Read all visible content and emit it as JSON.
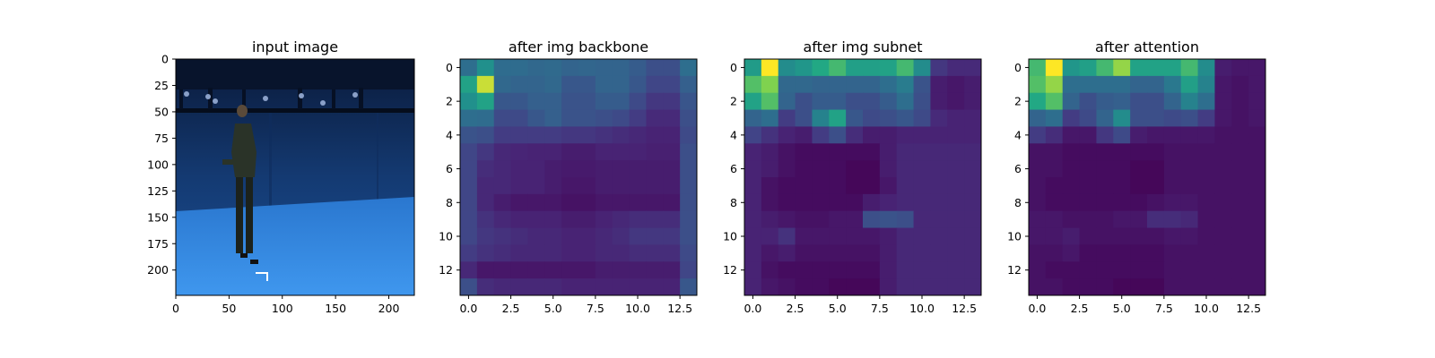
{
  "chart_data": [
    {
      "type": "image",
      "title": "input image",
      "xlim": [
        0,
        224
      ],
      "ylim": [
        224,
        0
      ],
      "xticks": [
        0,
        50,
        100,
        150,
        200
      ],
      "yticks": [
        0,
        25,
        50,
        75,
        100,
        125,
        150,
        175,
        200
      ],
      "content": "motion-capture studio with blue backdrop, a person standing on a blue floor"
    },
    {
      "type": "heatmap",
      "title": "after img backbone",
      "xlim": [
        -0.5,
        13.5
      ],
      "ylim": [
        13.5,
        -0.5
      ],
      "xticks": [
        "0.0",
        "2.5",
        "5.0",
        "7.5",
        "10.0",
        "12.5"
      ],
      "yticks": [
        "0",
        "2",
        "4",
        "6",
        "8",
        "10",
        "12"
      ],
      "colormap": "viridis",
      "values": [
        [
          0.45,
          0.62,
          0.44,
          0.44,
          0.42,
          0.43,
          0.4,
          0.41,
          0.4,
          0.4,
          0.36,
          0.3,
          0.3,
          0.45
        ],
        [
          0.72,
          0.95,
          0.42,
          0.4,
          0.4,
          0.42,
          0.34,
          0.34,
          0.4,
          0.4,
          0.34,
          0.26,
          0.26,
          0.38
        ],
        [
          0.62,
          0.72,
          0.34,
          0.34,
          0.38,
          0.38,
          0.32,
          0.32,
          0.36,
          0.36,
          0.28,
          0.2,
          0.2,
          0.33
        ],
        [
          0.45,
          0.44,
          0.28,
          0.28,
          0.34,
          0.38,
          0.32,
          0.32,
          0.3,
          0.28,
          0.22,
          0.15,
          0.15,
          0.3
        ],
        [
          0.32,
          0.3,
          0.22,
          0.22,
          0.22,
          0.22,
          0.2,
          0.2,
          0.18,
          0.16,
          0.14,
          0.12,
          0.12,
          0.28
        ],
        [
          0.26,
          0.2,
          0.14,
          0.13,
          0.12,
          0.12,
          0.1,
          0.1,
          0.12,
          0.12,
          0.12,
          0.11,
          0.11,
          0.3
        ],
        [
          0.26,
          0.16,
          0.14,
          0.12,
          0.12,
          0.1,
          0.09,
          0.09,
          0.1,
          0.1,
          0.1,
          0.1,
          0.1,
          0.3
        ],
        [
          0.26,
          0.14,
          0.14,
          0.12,
          0.12,
          0.1,
          0.08,
          0.08,
          0.1,
          0.1,
          0.1,
          0.1,
          0.1,
          0.3
        ],
        [
          0.26,
          0.14,
          0.1,
          0.08,
          0.08,
          0.08,
          0.06,
          0.06,
          0.08,
          0.08,
          0.08,
          0.08,
          0.08,
          0.3
        ],
        [
          0.26,
          0.18,
          0.14,
          0.12,
          0.12,
          0.12,
          0.1,
          0.1,
          0.12,
          0.14,
          0.16,
          0.16,
          0.16,
          0.3
        ],
        [
          0.26,
          0.2,
          0.18,
          0.16,
          0.14,
          0.14,
          0.12,
          0.12,
          0.14,
          0.16,
          0.2,
          0.2,
          0.2,
          0.3
        ],
        [
          0.22,
          0.18,
          0.16,
          0.14,
          0.14,
          0.14,
          0.12,
          0.12,
          0.14,
          0.14,
          0.16,
          0.16,
          0.16,
          0.28
        ],
        [
          0.14,
          0.08,
          0.08,
          0.08,
          0.08,
          0.08,
          0.08,
          0.08,
          0.1,
          0.1,
          0.1,
          0.1,
          0.1,
          0.26
        ],
        [
          0.3,
          0.16,
          0.14,
          0.14,
          0.14,
          0.14,
          0.12,
          0.12,
          0.12,
          0.12,
          0.12,
          0.12,
          0.12,
          0.34
        ]
      ]
    },
    {
      "type": "heatmap",
      "title": "after img subnet",
      "xlim": [
        -0.5,
        13.5
      ],
      "ylim": [
        13.5,
        -0.5
      ],
      "xticks": [
        "0.0",
        "2.5",
        "5.0",
        "7.5",
        "10.0",
        "12.5"
      ],
      "yticks": [
        "0",
        "2",
        "4",
        "6",
        "8",
        "10",
        "12"
      ],
      "colormap": "viridis",
      "values": [
        [
          0.68,
          1.0,
          0.6,
          0.65,
          0.75,
          0.8,
          0.7,
          0.7,
          0.72,
          0.8,
          0.6,
          0.2,
          0.15,
          0.15
        ],
        [
          0.82,
          0.88,
          0.42,
          0.42,
          0.4,
          0.4,
          0.4,
          0.4,
          0.45,
          0.52,
          0.32,
          0.1,
          0.08,
          0.1
        ],
        [
          0.72,
          0.82,
          0.4,
          0.3,
          0.36,
          0.36,
          0.3,
          0.3,
          0.36,
          0.45,
          0.3,
          0.1,
          0.08,
          0.1
        ],
        [
          0.4,
          0.45,
          0.22,
          0.3,
          0.55,
          0.72,
          0.34,
          0.28,
          0.3,
          0.34,
          0.28,
          0.15,
          0.12,
          0.12
        ],
        [
          0.25,
          0.18,
          0.12,
          0.1,
          0.22,
          0.3,
          0.16,
          0.1,
          0.1,
          0.12,
          0.12,
          0.12,
          0.12,
          0.12
        ],
        [
          0.12,
          0.1,
          0.06,
          0.04,
          0.04,
          0.04,
          0.04,
          0.04,
          0.1,
          0.14,
          0.14,
          0.14,
          0.14,
          0.14
        ],
        [
          0.12,
          0.1,
          0.06,
          0.04,
          0.04,
          0.04,
          0.02,
          0.02,
          0.1,
          0.14,
          0.14,
          0.14,
          0.14,
          0.14
        ],
        [
          0.12,
          0.06,
          0.04,
          0.04,
          0.04,
          0.04,
          0.02,
          0.02,
          0.08,
          0.14,
          0.14,
          0.14,
          0.14,
          0.14
        ],
        [
          0.12,
          0.06,
          0.04,
          0.04,
          0.04,
          0.04,
          0.04,
          0.1,
          0.12,
          0.14,
          0.14,
          0.14,
          0.14,
          0.14
        ],
        [
          0.12,
          0.1,
          0.08,
          0.06,
          0.06,
          0.08,
          0.08,
          0.3,
          0.32,
          0.3,
          0.14,
          0.14,
          0.14,
          0.14
        ],
        [
          0.12,
          0.12,
          0.18,
          0.08,
          0.08,
          0.08,
          0.08,
          0.08,
          0.1,
          0.14,
          0.14,
          0.14,
          0.14,
          0.14
        ],
        [
          0.12,
          0.08,
          0.1,
          0.06,
          0.06,
          0.06,
          0.06,
          0.06,
          0.1,
          0.14,
          0.14,
          0.14,
          0.14,
          0.14
        ],
        [
          0.12,
          0.06,
          0.04,
          0.04,
          0.04,
          0.04,
          0.04,
          0.04,
          0.1,
          0.14,
          0.14,
          0.14,
          0.14,
          0.14
        ],
        [
          0.12,
          0.08,
          0.06,
          0.04,
          0.04,
          0.02,
          0.02,
          0.02,
          0.1,
          0.14,
          0.14,
          0.14,
          0.14,
          0.14
        ]
      ]
    },
    {
      "type": "heatmap",
      "title": "after attention",
      "xlim": [
        -0.5,
        13.5
      ],
      "ylim": [
        13.5,
        -0.5
      ],
      "xticks": [
        "0.0",
        "2.5",
        "5.0",
        "7.5",
        "10.0",
        "12.5"
      ],
      "yticks": [
        "0",
        "2",
        "4",
        "6",
        "8",
        "10",
        "12"
      ],
      "colormap": "viridis",
      "values": [
        [
          0.8,
          1.0,
          0.65,
          0.7,
          0.8,
          0.9,
          0.72,
          0.72,
          0.72,
          0.8,
          0.6,
          0.1,
          0.08,
          0.08
        ],
        [
          0.82,
          0.9,
          0.45,
          0.45,
          0.45,
          0.45,
          0.4,
          0.4,
          0.5,
          0.7,
          0.55,
          0.08,
          0.06,
          0.08
        ],
        [
          0.75,
          0.82,
          0.4,
          0.3,
          0.36,
          0.38,
          0.3,
          0.3,
          0.4,
          0.55,
          0.45,
          0.08,
          0.06,
          0.08
        ],
        [
          0.4,
          0.45,
          0.22,
          0.28,
          0.4,
          0.6,
          0.3,
          0.3,
          0.28,
          0.3,
          0.22,
          0.08,
          0.06,
          0.08
        ],
        [
          0.22,
          0.16,
          0.08,
          0.08,
          0.2,
          0.28,
          0.1,
          0.08,
          0.08,
          0.08,
          0.08,
          0.06,
          0.06,
          0.06
        ],
        [
          0.06,
          0.06,
          0.04,
          0.04,
          0.04,
          0.04,
          0.04,
          0.04,
          0.06,
          0.06,
          0.06,
          0.06,
          0.06,
          0.06
        ],
        [
          0.06,
          0.06,
          0.04,
          0.04,
          0.04,
          0.04,
          0.02,
          0.02,
          0.06,
          0.06,
          0.06,
          0.06,
          0.06,
          0.06
        ],
        [
          0.06,
          0.04,
          0.04,
          0.04,
          0.04,
          0.04,
          0.02,
          0.02,
          0.06,
          0.06,
          0.06,
          0.06,
          0.06,
          0.06
        ],
        [
          0.06,
          0.04,
          0.04,
          0.04,
          0.04,
          0.04,
          0.04,
          0.06,
          0.08,
          0.08,
          0.06,
          0.06,
          0.06,
          0.06
        ],
        [
          0.08,
          0.08,
          0.06,
          0.06,
          0.06,
          0.08,
          0.08,
          0.16,
          0.16,
          0.14,
          0.06,
          0.06,
          0.06,
          0.06
        ],
        [
          0.08,
          0.08,
          0.1,
          0.06,
          0.06,
          0.06,
          0.06,
          0.06,
          0.08,
          0.08,
          0.06,
          0.06,
          0.06,
          0.06
        ],
        [
          0.06,
          0.06,
          0.08,
          0.04,
          0.04,
          0.04,
          0.04,
          0.04,
          0.06,
          0.06,
          0.06,
          0.06,
          0.06,
          0.06
        ],
        [
          0.06,
          0.04,
          0.04,
          0.04,
          0.04,
          0.04,
          0.04,
          0.04,
          0.06,
          0.06,
          0.06,
          0.06,
          0.06,
          0.06
        ],
        [
          0.06,
          0.06,
          0.04,
          0.04,
          0.04,
          0.02,
          0.02,
          0.02,
          0.06,
          0.06,
          0.06,
          0.06,
          0.06,
          0.06
        ]
      ]
    }
  ]
}
